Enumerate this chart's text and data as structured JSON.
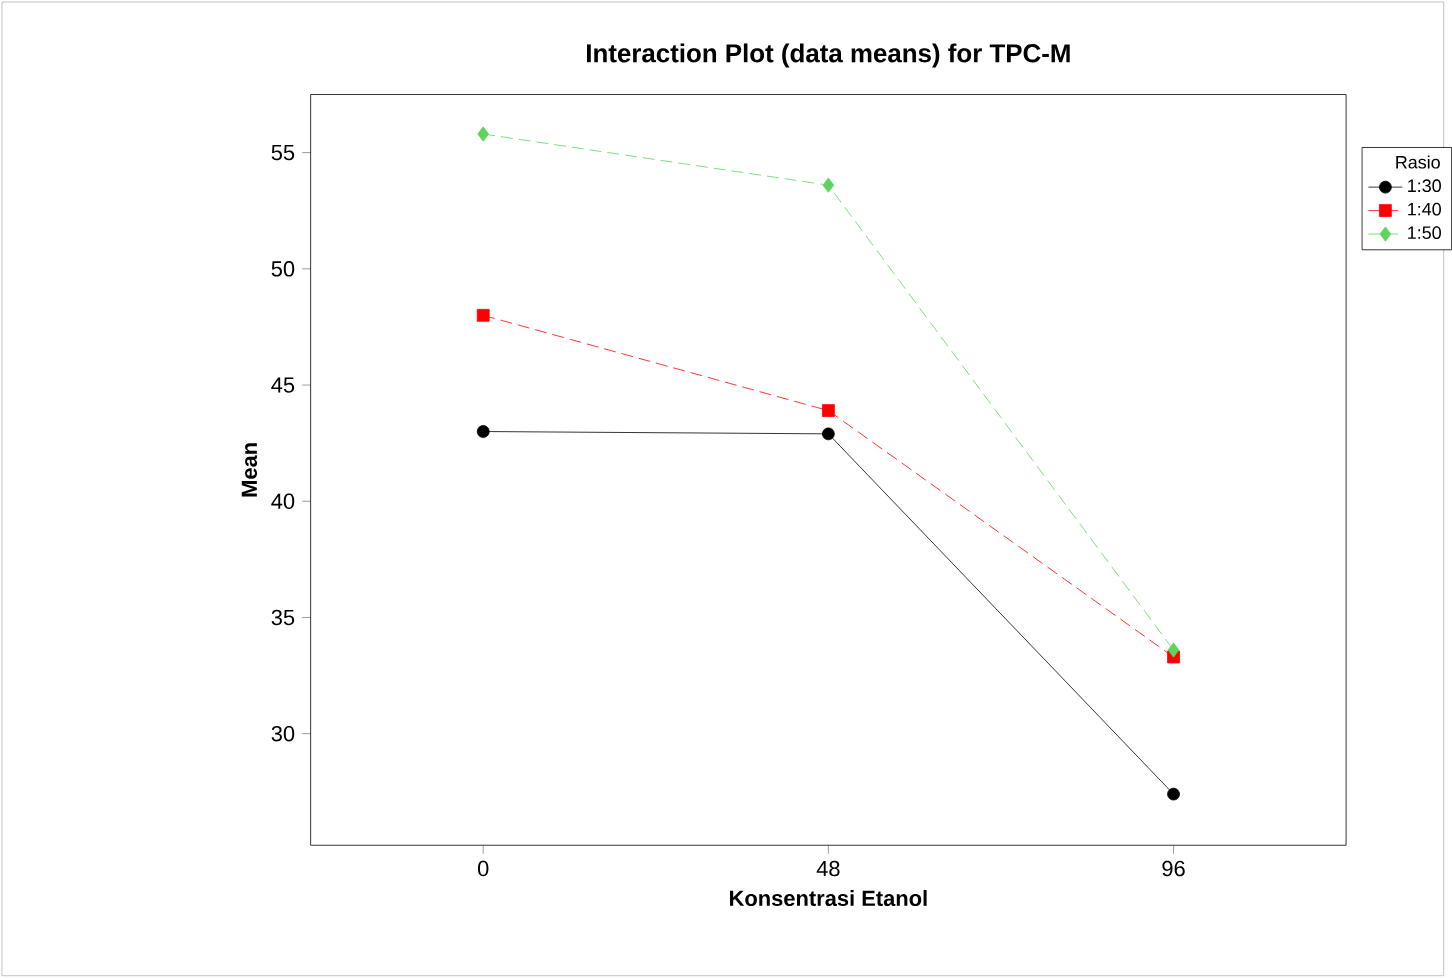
{
  "chart_data": {
    "type": "line",
    "title": "Interaction Plot (data means) for TPC-M",
    "xlabel": "Konsentrasi Etanol",
    "ylabel": "Mean",
    "legend_title": "Rasio",
    "legend": "top right",
    "grid": false,
    "categories": [
      "0",
      "48",
      "96"
    ],
    "ylim": [
      25.2,
      57.5
    ],
    "yticks": [
      30,
      35,
      40,
      45,
      50,
      55
    ],
    "series": [
      {
        "name": "1:30",
        "color": "#000000",
        "marker": "circle",
        "line_style": "solid",
        "values": [
          43.0,
          42.9,
          27.4
        ]
      },
      {
        "name": "1:40",
        "color": "#ff0000",
        "marker": "square",
        "line_style": "dashed",
        "values": [
          48.0,
          43.9,
          33.3
        ]
      },
      {
        "name": "1:50",
        "color": "#5ed45e",
        "marker": "diamond",
        "line_style": "dashed",
        "values": [
          55.8,
          53.6,
          33.6
        ]
      }
    ]
  }
}
